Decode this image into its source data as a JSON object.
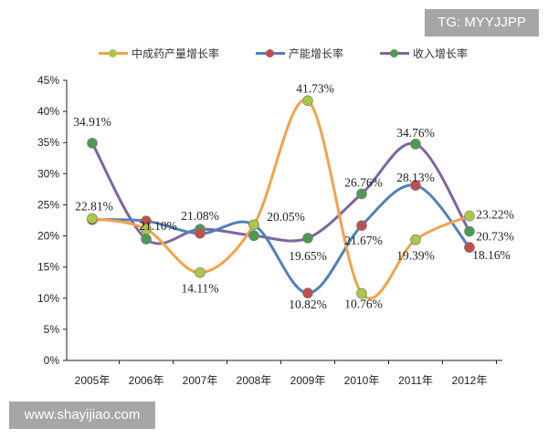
{
  "watermarks": {
    "top": "TG: MYYJJPP",
    "bottom": "www.shayijiao.com"
  },
  "chart_data": {
    "type": "line",
    "smooth": true,
    "categories": [
      "2005年",
      "2006年",
      "2007年",
      "2008年",
      "2009年",
      "2010年",
      "2011年",
      "2012年"
    ],
    "yticks": [
      "0%",
      "5%",
      "10%",
      "15%",
      "20%",
      "25%",
      "30%",
      "35%",
      "40%",
      "45%"
    ],
    "ylim": [
      0,
      45
    ],
    "grid": false,
    "legend": "top",
    "series": [
      {
        "name": "中成药产量增长率",
        "line_color": "#f4a24a",
        "marker_color": "#a9c84a",
        "values": [
          22.81,
          21.1,
          14.11,
          21.8,
          41.73,
          10.76,
          19.39,
          23.22
        ],
        "labels": [
          "22.81%",
          "21.10%",
          "14.11%",
          null,
          "41.73%",
          "10.76%",
          "19.39%",
          "23.22%"
        ]
      },
      {
        "name": "产能增长率",
        "line_color": "#4f81bd",
        "marker_color": "#c0504d",
        "values": [
          22.6,
          22.4,
          20.4,
          21.8,
          10.82,
          21.67,
          28.13,
          18.16
        ],
        "labels": [
          null,
          null,
          null,
          null,
          "10.82%",
          "21.67%",
          "28.13%",
          "18.16%"
        ]
      },
      {
        "name": "收入增长率",
        "line_color": "#8064a2",
        "marker_color": "#4e9a55",
        "values": [
          34.91,
          19.5,
          21.08,
          20.05,
          19.65,
          26.76,
          34.76,
          20.73
        ],
        "labels": [
          "34.91%",
          null,
          "21.08%",
          "20.05%",
          "19.65%",
          "26.76%",
          "34.76%",
          "20.73%"
        ]
      }
    ]
  }
}
